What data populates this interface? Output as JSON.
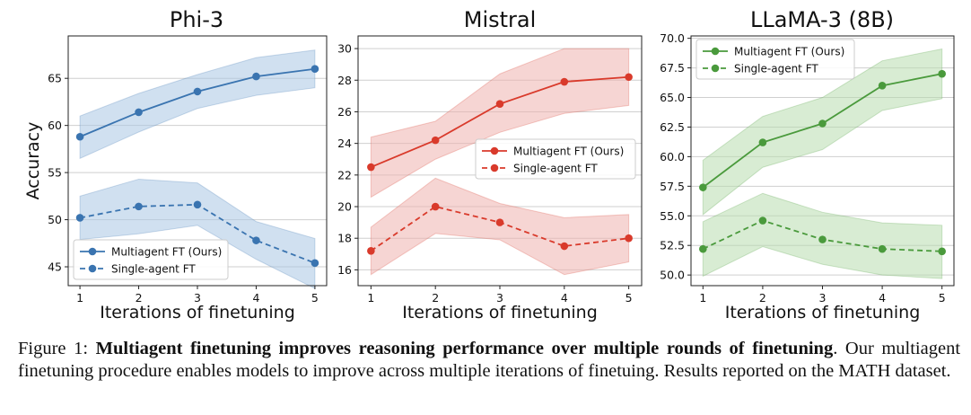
{
  "chart_data": [
    {
      "type": "line",
      "title": "Phi-3",
      "xlabel": "Iterations of finetuning",
      "ylabel": "Accuracy",
      "x": [
        1,
        2,
        3,
        4,
        5
      ],
      "xticks": [
        "1",
        "2",
        "3",
        "4",
        "5"
      ],
      "ylim": [
        43,
        69.5
      ],
      "yticks": [
        45,
        50,
        55,
        60,
        65
      ],
      "grid": "horizontal",
      "legend": "bottom-left",
      "color": "#3a74b0",
      "band_color": "#a9c7e3",
      "series": [
        {
          "name": "Multiagent FT (Ours)",
          "style": "solid",
          "values": [
            58.8,
            61.4,
            63.6,
            65.2,
            66.0
          ],
          "lower": [
            56.5,
            59.3,
            61.8,
            63.2,
            64.0
          ],
          "upper": [
            61.0,
            63.4,
            65.4,
            67.2,
            68.0
          ]
        },
        {
          "name": "Single-agent FT",
          "style": "dashed",
          "values": [
            50.2,
            51.4,
            51.6,
            47.8,
            45.4
          ],
          "lower": [
            47.9,
            48.5,
            49.4,
            45.8,
            42.7
          ],
          "upper": [
            52.5,
            54.3,
            53.9,
            49.8,
            48.0
          ]
        }
      ]
    },
    {
      "type": "line",
      "title": "Mistral",
      "xlabel": "Iterations of finetuning",
      "ylabel": "",
      "x": [
        1,
        2,
        3,
        4,
        5
      ],
      "xticks": [
        "1",
        "2",
        "3",
        "4",
        "5"
      ],
      "ylim": [
        15.0,
        30.8
      ],
      "yticks": [
        16,
        18,
        20,
        22,
        24,
        26,
        28,
        30
      ],
      "grid": "horizontal",
      "legend": "center-right",
      "color": "#d93a2b",
      "band_color": "#efb3ae",
      "series": [
        {
          "name": "Multiagent FT (Ours)",
          "style": "solid",
          "values": [
            22.5,
            24.2,
            26.5,
            27.9,
            28.2
          ],
          "lower": [
            20.6,
            23.0,
            24.7,
            25.9,
            26.4
          ],
          "upper": [
            24.4,
            25.4,
            28.4,
            30.0,
            30.0
          ]
        },
        {
          "name": "Single-agent FT",
          "style": "dashed",
          "values": [
            17.2,
            20.0,
            19.0,
            17.5,
            18.0
          ],
          "lower": [
            15.7,
            18.3,
            17.9,
            15.7,
            16.5
          ],
          "upper": [
            18.7,
            21.8,
            20.2,
            19.3,
            19.5
          ]
        }
      ]
    },
    {
      "type": "line",
      "title": "LLaMA-3 (8B)",
      "xlabel": "Iterations of finetuning",
      "ylabel": "",
      "x": [
        1,
        2,
        3,
        4,
        5
      ],
      "xticks": [
        "1",
        "2",
        "3",
        "4",
        "5"
      ],
      "ylim": [
        49.1,
        70.2
      ],
      "yticks": [
        50.0,
        52.5,
        55.0,
        57.5,
        60.0,
        62.5,
        65.0,
        67.5,
        70.0
      ],
      "grid": "horizontal",
      "legend": "top-left",
      "color": "#4a9a3c",
      "band_color": "#b8dcae",
      "series": [
        {
          "name": "Multiagent FT (Ours)",
          "style": "solid",
          "values": [
            57.4,
            61.2,
            62.8,
            66.0,
            67.0
          ],
          "lower": [
            55.1,
            59.1,
            60.6,
            63.9,
            64.9
          ],
          "upper": [
            59.7,
            63.4,
            65.0,
            68.1,
            69.1
          ]
        },
        {
          "name": "Single-agent FT",
          "style": "dashed",
          "values": [
            52.2,
            54.6,
            53.0,
            52.2,
            52.0
          ],
          "lower": [
            49.9,
            52.4,
            50.9,
            50.0,
            49.7
          ],
          "upper": [
            54.5,
            56.9,
            55.3,
            54.4,
            54.2
          ]
        }
      ]
    }
  ],
  "caption": {
    "label": "Figure 1:",
    "bold": "Multiagent finetuning improves reasoning performance over multiple rounds of finetuning",
    "text": ". Our multiagent finetuning procedure enables models to improve across multiple iterations of finetuing. Results reported on the MATH dataset."
  }
}
